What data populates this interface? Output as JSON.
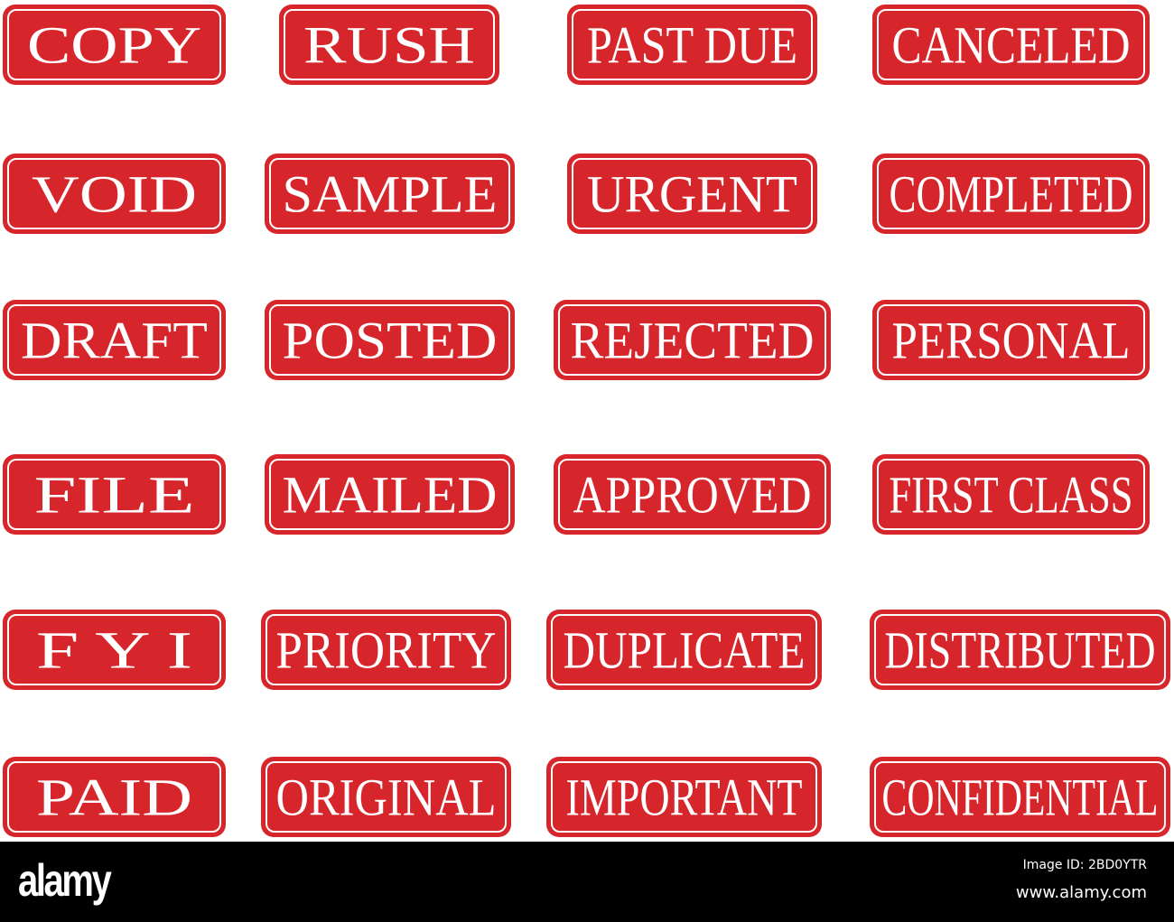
{
  "stamp_color": "#d7262b",
  "stamps": [
    "COPY",
    "RUSH",
    "PAST DUE",
    "CANCELED",
    "VOID",
    "SAMPLE",
    "URGENT",
    "COMPLETED",
    "DRAFT",
    "POSTED",
    "REJECTED",
    "PERSONAL",
    "FILE",
    "MAILED",
    "APPROVED",
    "FIRST CLASS",
    "F Y I",
    "PRIORITY",
    "DUPLICATE",
    "DISTRIBUTED",
    "PAID",
    "ORIGINAL",
    "IMPORTANT",
    "CONFIDENTIAL"
  ],
  "footer": {
    "logo": "alamy",
    "image_id": "Image ID: 2BD0YTR",
    "url": "www.alamy.com"
  }
}
